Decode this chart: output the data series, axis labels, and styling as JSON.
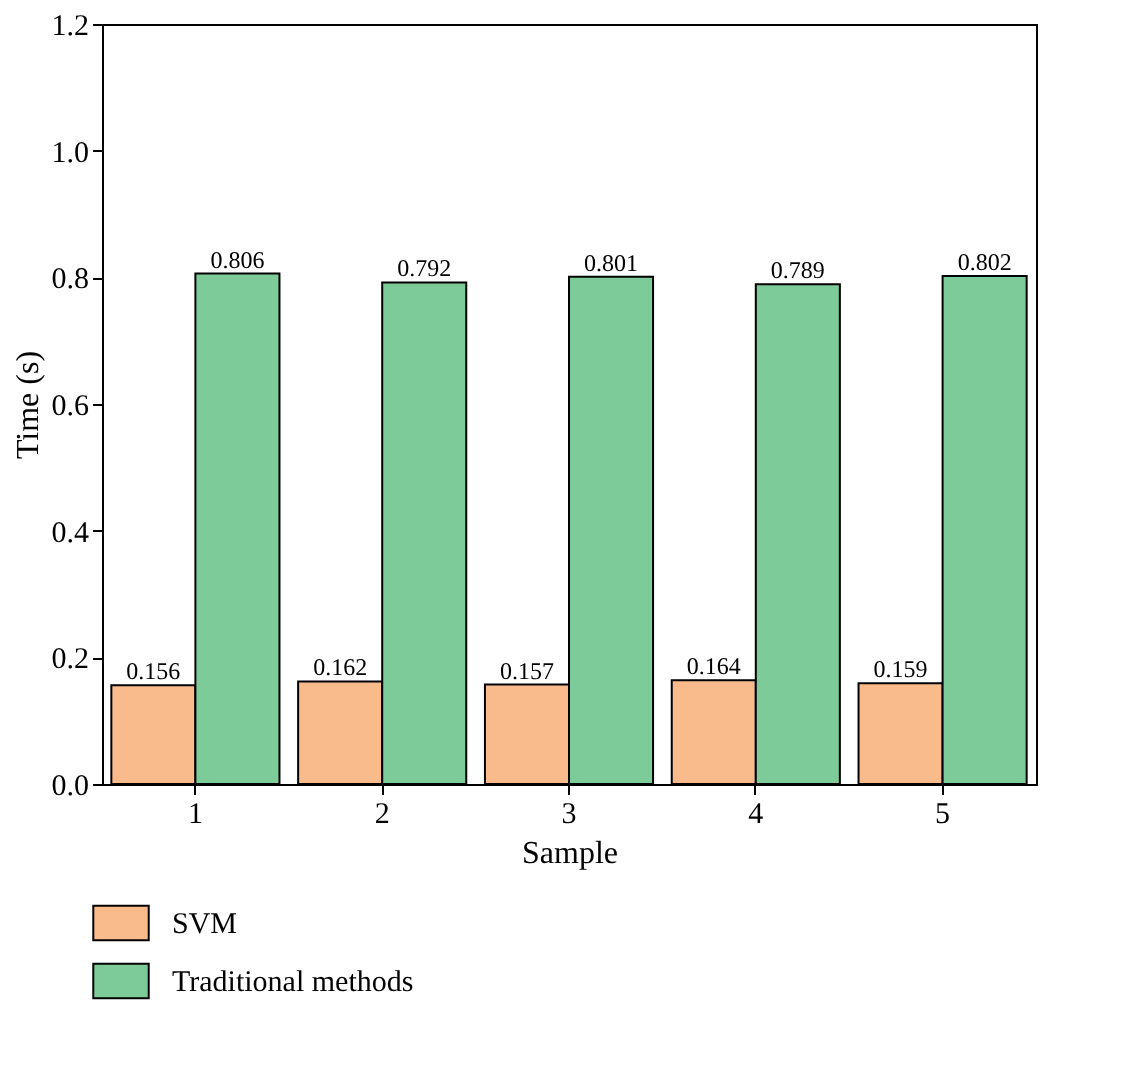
{
  "chart_data": {
    "type": "bar",
    "xlabel": "Sample",
    "ylabel": "Time (s)",
    "categories": [
      "1",
      "2",
      "3",
      "4",
      "5"
    ],
    "series": [
      {
        "name": "SVM",
        "color": "#f9bb8c",
        "values": [
          0.156,
          0.162,
          0.157,
          0.164,
          0.159
        ]
      },
      {
        "name": "Traditional methods",
        "color": "#7ccb98",
        "values": [
          0.806,
          0.792,
          0.801,
          0.789,
          0.802
        ]
      }
    ],
    "ylim": [
      0,
      1.2
    ],
    "yticks": [
      {
        "value": 0,
        "label": "0.0"
      },
      0.2,
      0.4,
      0.6,
      0.8,
      {
        "value": 1,
        "label": "1.0"
      },
      1.2
    ],
    "data_labels": true,
    "legend": "bottom left",
    "grid": false
  }
}
